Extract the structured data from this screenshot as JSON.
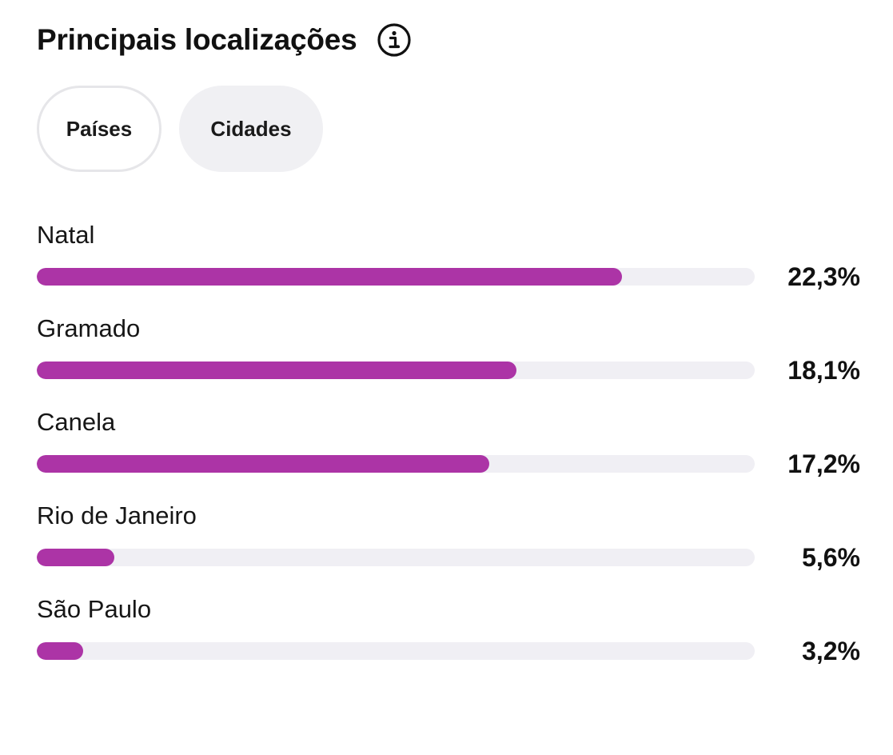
{
  "header": {
    "title": "Principais localizações",
    "info_icon": "info-icon"
  },
  "tabs": [
    {
      "label": "Países",
      "selected": false
    },
    {
      "label": "Cidades",
      "selected": true
    }
  ],
  "colors": {
    "bar_fill": "#ac34a6",
    "bar_track": "#f0eff4",
    "selected_tab_bg": "#f0f0f3"
  },
  "locations": [
    {
      "name": "Natal",
      "percent_label": "22,3%",
      "fill_fraction": 0.815
    },
    {
      "name": "Gramado",
      "percent_label": "18,1%",
      "fill_fraction": 0.668
    },
    {
      "name": "Canela",
      "percent_label": "17,2%",
      "fill_fraction": 0.63
    },
    {
      "name": "Rio de Janeiro",
      "percent_label": "5,6%",
      "fill_fraction": 0.108
    },
    {
      "name": "São Paulo",
      "percent_label": "3,2%",
      "fill_fraction": 0.065
    }
  ]
}
